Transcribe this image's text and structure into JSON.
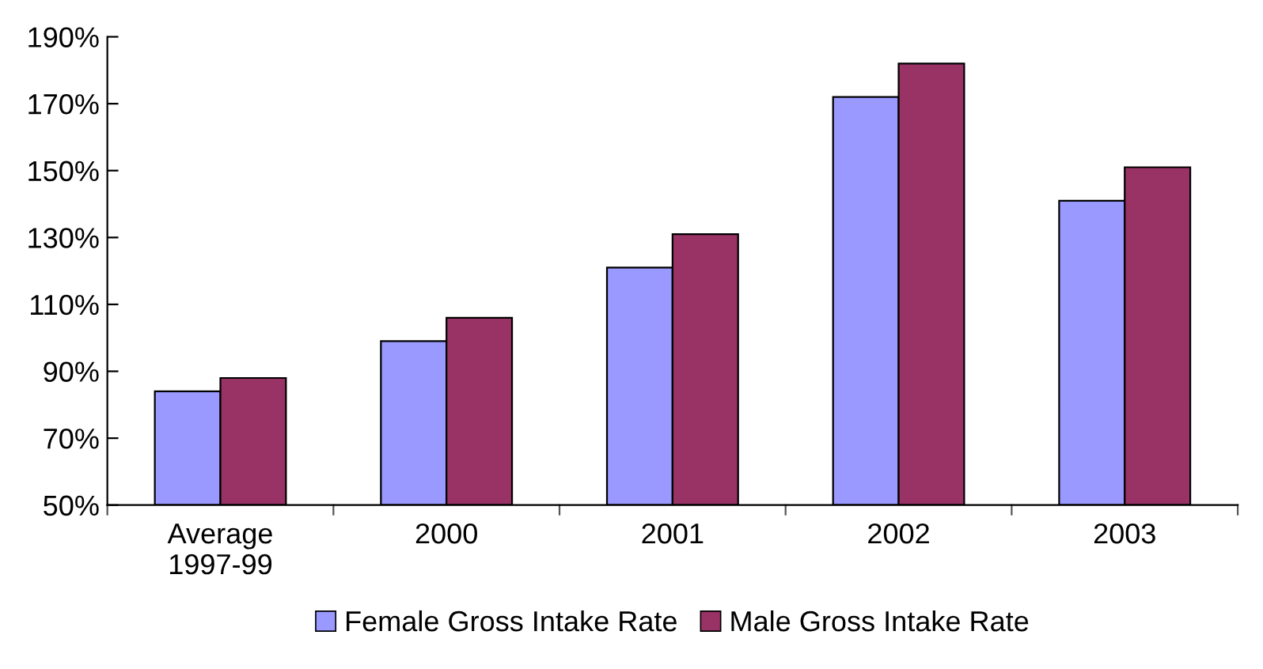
{
  "chart_data": {
    "type": "bar",
    "categories": [
      "Average\n1997-99",
      "2000",
      "2001",
      "2002",
      "2003"
    ],
    "series": [
      {
        "name": "Female Gross Intake Rate",
        "color": "#9999ff",
        "values": [
          84,
          99,
          121,
          172,
          141
        ]
      },
      {
        "name": "Male Gross Intake Rate",
        "color": "#993366",
        "values": [
          88,
          106,
          131,
          182,
          151
        ]
      }
    ],
    "ylim": [
      50,
      190
    ],
    "yticks": [
      {
        "value": 50,
        "label": "50%"
      },
      {
        "value": 70,
        "label": "70%"
      },
      {
        "value": 90,
        "label": "90%"
      },
      {
        "value": 110,
        "label": "110%"
      },
      {
        "value": 130,
        "label": "130%"
      },
      {
        "value": 150,
        "label": "150%"
      },
      {
        "value": 170,
        "label": "170%"
      },
      {
        "value": 190,
        "label": "190%"
      }
    ],
    "grid": false,
    "legend": "bottom"
  }
}
